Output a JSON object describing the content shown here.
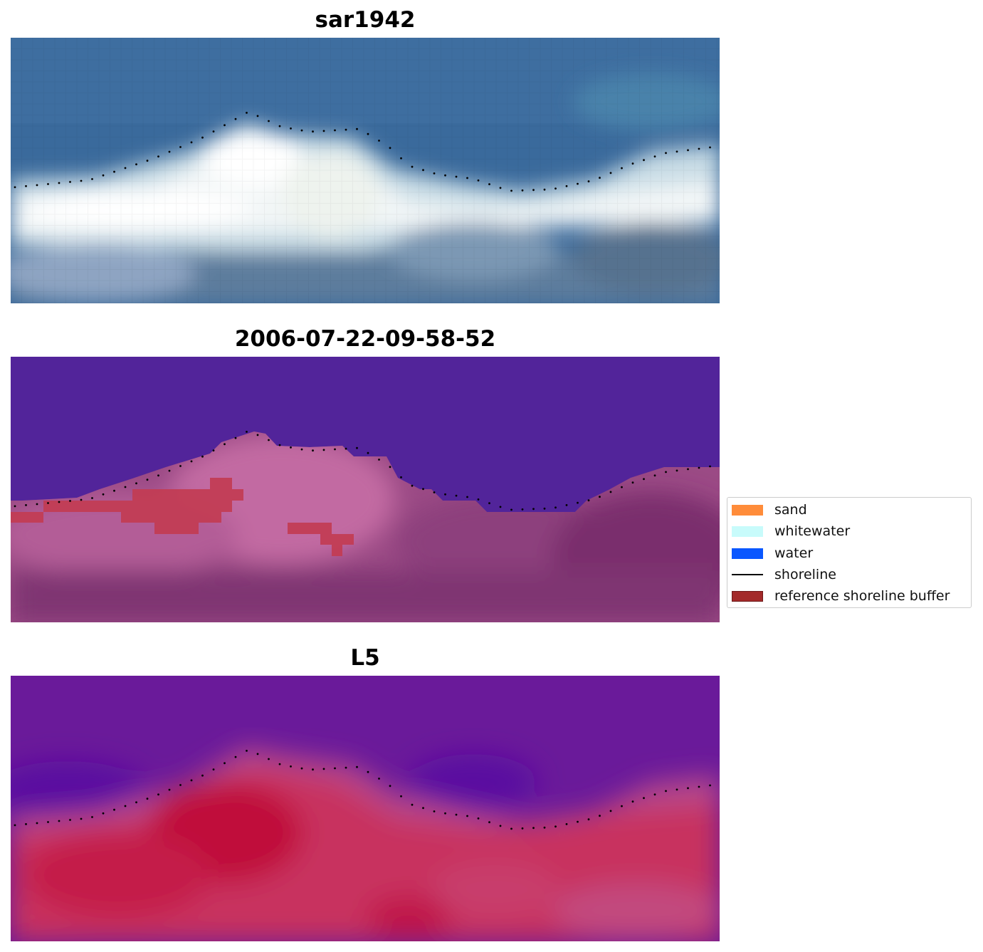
{
  "panels": [
    {
      "title": "sar1942",
      "style": "rgb"
    },
    {
      "title": "2006-07-22-09-58-52",
      "style": "classified"
    },
    {
      "title": "L5",
      "style": "index"
    }
  ],
  "legend": {
    "items": [
      {
        "label": "sand",
        "color": "#ff8c3a",
        "kind": "patch"
      },
      {
        "label": "whitewater",
        "color": "#c8fbfb",
        "kind": "patch"
      },
      {
        "label": "water",
        "color": "#0a57ff",
        "kind": "patch"
      },
      {
        "label": "shoreline",
        "color": "#000000",
        "kind": "line"
      },
      {
        "label": "reference shoreline buffer",
        "color": "#a32a2a",
        "kind": "patch"
      }
    ]
  }
}
